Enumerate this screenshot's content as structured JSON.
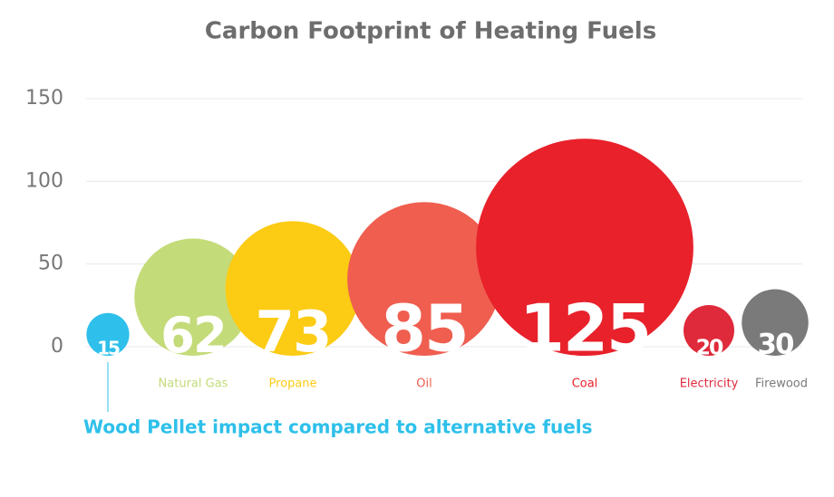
{
  "chart_data": {
    "type": "bubble",
    "title": "Carbon Footprint of Heating Fuels",
    "categories": [
      null,
      "Natural Gas",
      "Propane",
      "Oil",
      "Coal",
      "Electricity",
      "Firewood"
    ],
    "values": [
      15,
      62,
      73,
      85,
      125,
      20,
      30
    ],
    "colors": [
      "#2ec0ea",
      "#c4db79",
      "#fccb14",
      "#ef5e4f",
      "#e8212b",
      "#df2a3b",
      "#7a7a7a"
    ],
    "ylim": [
      0,
      150
    ],
    "yticks": [
      0,
      50,
      100,
      150
    ],
    "grid": true,
    "annotation": "Wood Pellet impact compared to alternative fuels",
    "annotation_color": "#2ec0ea"
  }
}
